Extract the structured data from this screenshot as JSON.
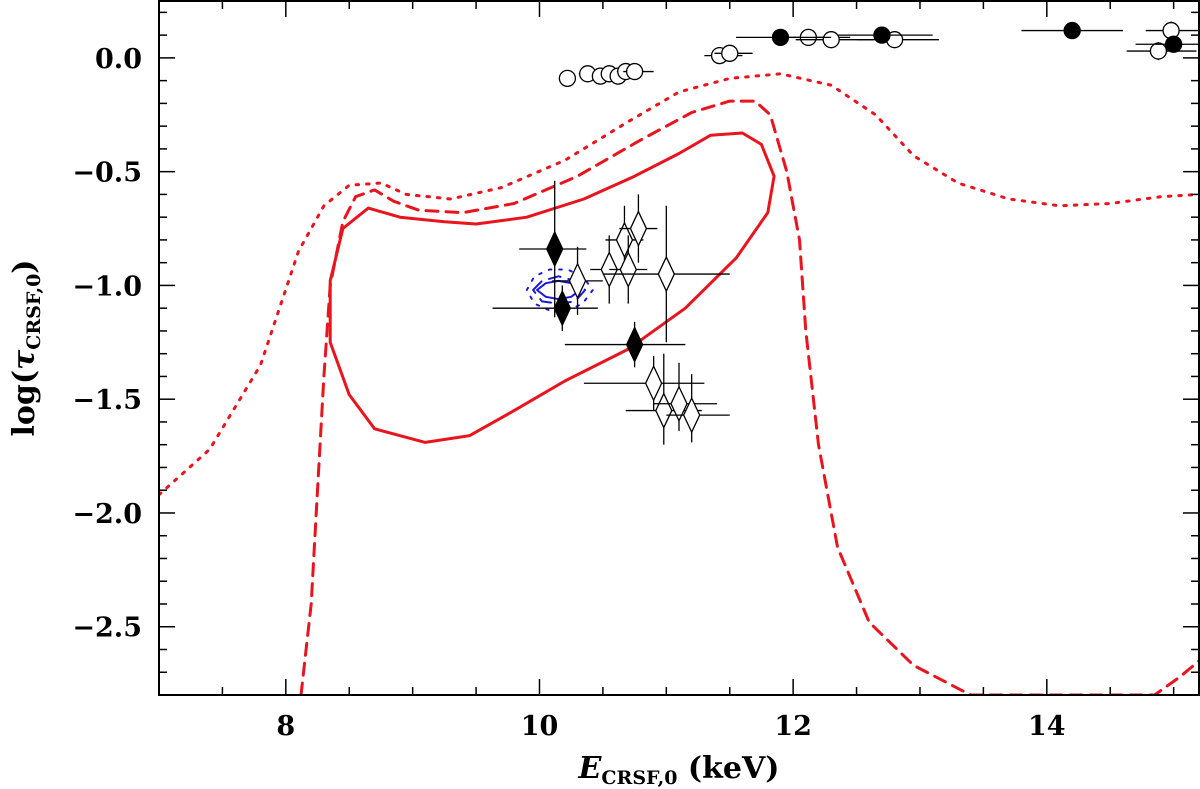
{
  "chart_data": {
    "type": "scatter",
    "title": "",
    "xlabel": {
      "symbol": "E",
      "subscript": "CRSF,0",
      "unit": " (keV)"
    },
    "ylabel": {
      "prefix": "log(",
      "symbol": "τ",
      "subscript": "CRSF,0",
      "suffix": ")"
    },
    "xlim": [
      7.0,
      15.2
    ],
    "ylim": [
      -2.8,
      0.25
    ],
    "xticks": [
      8,
      10,
      12,
      14
    ],
    "xtick_labels": [
      "8",
      "10",
      "12",
      "14"
    ],
    "yticks": [
      0.0,
      -0.5,
      -1.0,
      -1.5,
      -2.0,
      -2.5
    ],
    "ytick_labels": [
      "0.0",
      "−0.5",
      "−1.0",
      "−1.5",
      "−2.0",
      "−2.5"
    ],
    "grid": false,
    "series": [
      {
        "marker": "circle-open",
        "color": "#000000",
        "points": [
          {
            "x": 10.22,
            "y": -0.09,
            "xerr": [
              0.05,
              0.05
            ],
            "yerr": [
              0.02,
              0.02
            ]
          },
          {
            "x": 10.38,
            "y": -0.07,
            "xerr": [
              0.07,
              0.07
            ],
            "yerr": [
              0.02,
              0.02
            ]
          },
          {
            "x": 10.48,
            "y": -0.08,
            "xerr": [
              0.06,
              0.06
            ],
            "yerr": [
              0.02,
              0.02
            ]
          },
          {
            "x": 10.55,
            "y": -0.07,
            "xerr": [
              0.06,
              0.06
            ],
            "yerr": [
              0.02,
              0.02
            ]
          },
          {
            "x": 10.62,
            "y": -0.08,
            "xerr": [
              0.06,
              0.06
            ],
            "yerr": [
              0.02,
              0.02
            ]
          },
          {
            "x": 10.68,
            "y": -0.06,
            "xerr": [
              0.07,
              0.07
            ],
            "yerr": [
              0.02,
              0.02
            ]
          },
          {
            "x": 10.75,
            "y": -0.06,
            "xerr": [
              0.09,
              0.15
            ],
            "yerr": [
              0.02,
              0.02
            ]
          },
          {
            "x": 11.42,
            "y": 0.01,
            "xerr": [
              0.12,
              0.18
            ],
            "yerr": [
              0.02,
              0.02
            ]
          },
          {
            "x": 11.5,
            "y": 0.02,
            "xerr": [
              0.12,
              0.18
            ],
            "yerr": [
              0.02,
              0.02
            ]
          },
          {
            "x": 12.12,
            "y": 0.09,
            "xerr": [
              0.28,
              0.33
            ],
            "yerr": [
              0.02,
              0.02
            ]
          },
          {
            "x": 12.3,
            "y": 0.08,
            "xerr": [
              0.28,
              0.33
            ],
            "yerr": [
              0.02,
              0.02
            ]
          },
          {
            "x": 12.8,
            "y": 0.08,
            "xerr": [
              0.3,
              0.35
            ],
            "yerr": [
              0.02,
              0.02
            ]
          },
          {
            "x": 14.88,
            "y": 0.03,
            "xerr": [
              0.25,
              0.3
            ],
            "yerr": [
              0.04,
              0.04
            ]
          },
          {
            "x": 14.98,
            "y": 0.12,
            "xerr": [
              0.2,
              0.22
            ],
            "yerr": [
              0.04,
              0.04
            ]
          }
        ]
      },
      {
        "marker": "circle-filled",
        "color": "#000000",
        "points": [
          {
            "x": 11.9,
            "y": 0.09,
            "xerr": [
              0.35,
              0.4
            ],
            "yerr": [
              0.02,
              0.02
            ]
          },
          {
            "x": 12.7,
            "y": 0.1,
            "xerr": [
              0.35,
              0.4
            ],
            "yerr": [
              0.02,
              0.02
            ]
          },
          {
            "x": 14.2,
            "y": 0.12,
            "xerr": [
              0.4,
              0.4
            ],
            "yerr": [
              0.02,
              0.02
            ]
          },
          {
            "x": 15.0,
            "y": 0.06,
            "xerr": [
              0.3,
              0.2
            ],
            "yerr": [
              0.03,
              0.03
            ]
          }
        ]
      },
      {
        "marker": "diamond-open",
        "color": "#000000",
        "points": [
          {
            "x": 10.3,
            "y": -0.98,
            "xerr": [
              0.2,
              0.2
            ],
            "yerr": [
              0.15,
              0.15
            ]
          },
          {
            "x": 10.55,
            "y": -0.93,
            "xerr": [
              0.15,
              0.15
            ],
            "yerr": [
              0.15,
              0.15
            ]
          },
          {
            "x": 10.67,
            "y": -0.8,
            "xerr": [
              0.15,
              0.15
            ],
            "yerr": [
              0.15,
              0.15
            ]
          },
          {
            "x": 10.7,
            "y": -0.93,
            "xerr": [
              0.15,
              0.15
            ],
            "yerr": [
              0.15,
              0.15
            ]
          },
          {
            "x": 10.78,
            "y": -0.75,
            "xerr": [
              0.15,
              0.15
            ],
            "yerr": [
              0.15,
              0.15
            ]
          },
          {
            "x": 11.0,
            "y": -0.95,
            "xerr": [
              0.5,
              0.5
            ],
            "yerr": [
              0.3,
              0.3
            ]
          },
          {
            "x": 10.9,
            "y": -1.43,
            "xerr": [
              0.55,
              0.4
            ],
            "yerr": [
              0.12,
              0.12
            ]
          },
          {
            "x": 10.98,
            "y": -1.55,
            "xerr": [
              0.3,
              0.3
            ],
            "yerr": [
              0.15,
              0.25
            ]
          },
          {
            "x": 11.1,
            "y": -1.52,
            "xerr": [
              0.2,
              0.3
            ],
            "yerr": [
              0.12,
              0.18
            ]
          },
          {
            "x": 11.2,
            "y": -1.57,
            "xerr": [
              0.2,
              0.3
            ],
            "yerr": [
              0.12,
              0.18
            ]
          }
        ]
      },
      {
        "marker": "diamond-filled",
        "color": "#000000",
        "points": [
          {
            "x": 10.12,
            "y": -0.84,
            "xerr": [
              0.28,
              0.25
            ],
            "yerr": [
              0.3,
              0.3
            ]
          },
          {
            "x": 10.18,
            "y": -1.1,
            "xerr": [
              0.55,
              0.28
            ],
            "yerr": [
              0.1,
              0.1
            ]
          },
          {
            "x": 10.75,
            "y": -1.26,
            "xerr": [
              0.55,
              0.4
            ],
            "yerr": [
              0.1,
              0.1
            ]
          }
        ]
      }
    ],
    "contours": [
      {
        "color": "#e8141e",
        "style": "solid",
        "points": [
          [
            8.65,
            -0.66
          ],
          [
            8.9,
            -0.7
          ],
          [
            9.25,
            -0.72
          ],
          [
            9.5,
            -0.73
          ],
          [
            9.9,
            -0.7
          ],
          [
            10.35,
            -0.62
          ],
          [
            10.75,
            -0.52
          ],
          [
            11.1,
            -0.42
          ],
          [
            11.35,
            -0.34
          ],
          [
            11.6,
            -0.33
          ],
          [
            11.75,
            -0.38
          ],
          [
            11.85,
            -0.52
          ],
          [
            11.8,
            -0.68
          ],
          [
            11.55,
            -0.88
          ],
          [
            11.15,
            -1.1
          ],
          [
            10.7,
            -1.28
          ],
          [
            10.2,
            -1.42
          ],
          [
            9.8,
            -1.55
          ],
          [
            9.45,
            -1.66
          ],
          [
            9.1,
            -1.69
          ],
          [
            8.7,
            -1.63
          ],
          [
            8.5,
            -1.48
          ],
          [
            8.35,
            -1.25
          ],
          [
            8.35,
            -0.98
          ],
          [
            8.45,
            -0.75
          ],
          [
            8.65,
            -0.66
          ]
        ]
      },
      {
        "color": "#e8141e",
        "style": "dashed",
        "points": [
          [
            8.12,
            -2.8
          ],
          [
            8.2,
            -2.4
          ],
          [
            8.25,
            -1.9
          ],
          [
            8.3,
            -1.4
          ],
          [
            8.35,
            -1.0
          ],
          [
            8.45,
            -0.72
          ],
          [
            8.55,
            -0.61
          ],
          [
            8.7,
            -0.58
          ],
          [
            8.85,
            -0.63
          ],
          [
            9.05,
            -0.67
          ],
          [
            9.4,
            -0.68
          ],
          [
            9.8,
            -0.64
          ],
          [
            10.3,
            -0.52
          ],
          [
            10.8,
            -0.36
          ],
          [
            11.2,
            -0.24
          ],
          [
            11.5,
            -0.19
          ],
          [
            11.7,
            -0.19
          ],
          [
            11.82,
            -0.25
          ],
          [
            11.95,
            -0.5
          ],
          [
            12.05,
            -0.8
          ],
          [
            12.1,
            -1.2
          ],
          [
            12.2,
            -1.7
          ],
          [
            12.35,
            -2.15
          ],
          [
            12.6,
            -2.48
          ],
          [
            12.95,
            -2.67
          ],
          [
            13.4,
            -2.8
          ],
          [
            14.85,
            -2.8
          ],
          [
            15.05,
            -2.72
          ],
          [
            15.2,
            -2.65
          ]
        ]
      },
      {
        "color": "#e8141e",
        "style": "dotted",
        "points": [
          [
            7.0,
            -1.92
          ],
          [
            7.4,
            -1.72
          ],
          [
            7.8,
            -1.35
          ],
          [
            8.1,
            -0.85
          ],
          [
            8.3,
            -0.65
          ],
          [
            8.5,
            -0.56
          ],
          [
            8.75,
            -0.55
          ],
          [
            8.95,
            -0.6
          ],
          [
            9.3,
            -0.62
          ],
          [
            9.7,
            -0.57
          ],
          [
            10.2,
            -0.45
          ],
          [
            10.7,
            -0.28
          ],
          [
            11.1,
            -0.15
          ],
          [
            11.5,
            -0.09
          ],
          [
            11.9,
            -0.07
          ],
          [
            12.3,
            -0.12
          ],
          [
            12.65,
            -0.25
          ],
          [
            12.95,
            -0.43
          ],
          [
            13.3,
            -0.55
          ],
          [
            13.7,
            -0.62
          ],
          [
            14.1,
            -0.65
          ],
          [
            14.5,
            -0.64
          ],
          [
            14.9,
            -0.61
          ],
          [
            15.2,
            -0.6
          ]
        ]
      },
      {
        "color": "#1a1ad6",
        "style": "solid",
        "points": [
          [
            9.98,
            -1.02
          ],
          [
            10.05,
            -0.99
          ],
          [
            10.15,
            -0.98
          ],
          [
            10.25,
            -0.99
          ],
          [
            10.32,
            -1.02
          ],
          [
            10.25,
            -1.05
          ],
          [
            10.15,
            -1.06
          ],
          [
            10.05,
            -1.05
          ],
          [
            9.98,
            -1.02
          ]
        ]
      },
      {
        "color": "#1a1ad6",
        "style": "dashed",
        "points": [
          [
            9.95,
            -1.02
          ],
          [
            10.02,
            -0.98
          ],
          [
            10.15,
            -0.96
          ],
          [
            10.28,
            -0.98
          ],
          [
            10.36,
            -1.02
          ],
          [
            10.28,
            -1.07
          ],
          [
            10.15,
            -1.08
          ],
          [
            10.02,
            -1.07
          ],
          [
            9.95,
            -1.02
          ]
        ]
      },
      {
        "color": "#1a1ad6",
        "style": "dotted",
        "points": [
          [
            9.9,
            -1.02
          ],
          [
            9.96,
            -0.96
          ],
          [
            10.08,
            -0.93
          ],
          [
            10.22,
            -0.93
          ],
          [
            10.34,
            -0.96
          ],
          [
            10.42,
            -1.02
          ],
          [
            10.34,
            -1.08
          ],
          [
            10.22,
            -1.11
          ],
          [
            10.08,
            -1.11
          ],
          [
            9.96,
            -1.08
          ],
          [
            9.9,
            -1.02
          ]
        ]
      }
    ]
  }
}
